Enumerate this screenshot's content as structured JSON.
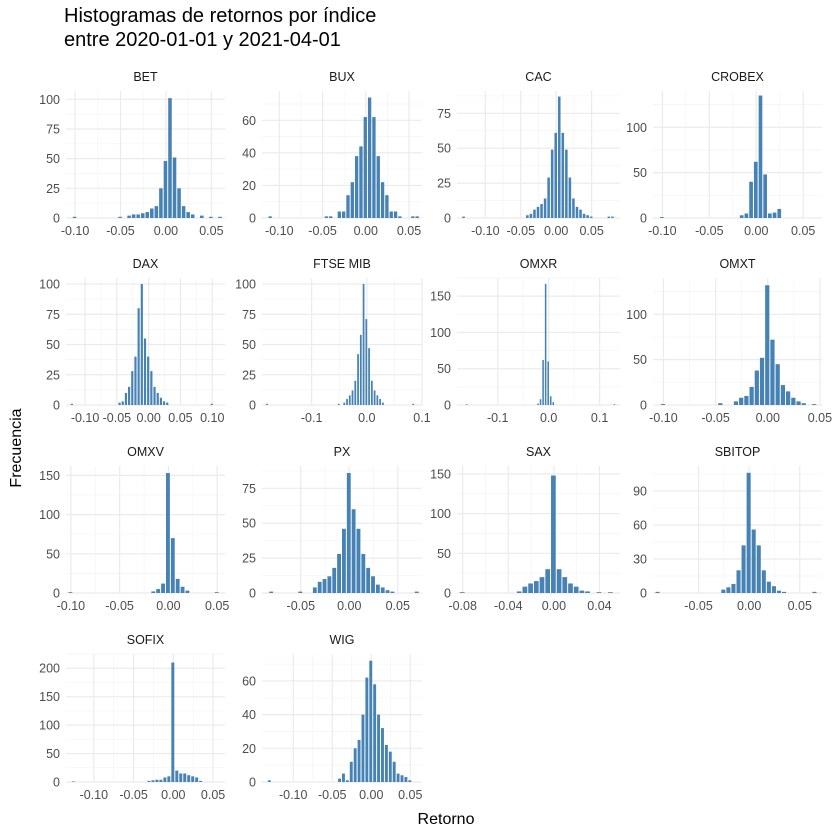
{
  "title_line1": "Histogramas de retornos por índice",
  "title_line2": "entre 2020-01-01 y 2021-04-01",
  "xlabel": "Retorno",
  "ylabel": "Frecuencia",
  "colors": {
    "bar": "#4682b4",
    "grid_major": "#ebebeb",
    "grid_minor": "#f4f4f4"
  },
  "chart_data": [
    {
      "type": "bar",
      "title": "BET",
      "xlim": [
        -0.11,
        0.065
      ],
      "ylim": [
        0,
        107
      ],
      "xticks": [
        -0.1,
        -0.05,
        0.0,
        0.05
      ],
      "xtick_labels": [
        "-0.10",
        "-0.05",
        "0.00",
        "0.05"
      ],
      "yticks": [
        0,
        25,
        50,
        75,
        100
      ],
      "ytick_labels": [
        "0",
        "25",
        "50",
        "75",
        "100"
      ],
      "bins": [
        [
          -0.1,
          1
        ],
        [
          -0.05,
          1
        ],
        [
          -0.04,
          2
        ],
        [
          -0.035,
          3
        ],
        [
          -0.03,
          3
        ],
        [
          -0.025,
          4
        ],
        [
          -0.02,
          5
        ],
        [
          -0.015,
          8
        ],
        [
          -0.01,
          10
        ],
        [
          -0.005,
          25
        ],
        [
          0.0,
          48
        ],
        [
          0.005,
          101
        ],
        [
          0.01,
          51
        ],
        [
          0.015,
          25
        ],
        [
          0.02,
          10
        ],
        [
          0.025,
          5
        ],
        [
          0.03,
          3
        ],
        [
          0.04,
          2
        ],
        [
          0.05,
          1
        ],
        [
          0.06,
          1
        ]
      ]
    },
    {
      "type": "bar",
      "title": "BUX",
      "xlim": [
        -0.12,
        0.065
      ],
      "ylim": [
        0,
        78
      ],
      "xticks": [
        -0.1,
        -0.05,
        0.0,
        0.05
      ],
      "xtick_labels": [
        "-0.10",
        "-0.05",
        "0.00",
        "0.05"
      ],
      "yticks": [
        0,
        20,
        40,
        60
      ],
      "ytick_labels": [
        "0",
        "20",
        "40",
        "60"
      ],
      "bins": [
        [
          -0.11,
          1
        ],
        [
          -0.045,
          1
        ],
        [
          -0.04,
          1
        ],
        [
          -0.03,
          4
        ],
        [
          -0.025,
          4
        ],
        [
          -0.02,
          14
        ],
        [
          -0.015,
          22
        ],
        [
          -0.01,
          38
        ],
        [
          -0.005,
          44
        ],
        [
          0.0,
          62
        ],
        [
          0.005,
          74
        ],
        [
          0.01,
          62
        ],
        [
          0.015,
          38
        ],
        [
          0.02,
          22
        ],
        [
          0.025,
          14
        ],
        [
          0.03,
          4
        ],
        [
          0.035,
          4
        ],
        [
          0.04,
          1
        ],
        [
          0.055,
          1
        ],
        [
          0.06,
          1
        ]
      ]
    },
    {
      "type": "bar",
      "title": "CAC",
      "xlim": [
        -0.14,
        0.09
      ],
      "ylim": [
        0,
        91
      ],
      "xticks": [
        -0.1,
        -0.05,
        0.0,
        0.05
      ],
      "xtick_labels": [
        "-0.10",
        "-0.05",
        "0.00",
        "0.05"
      ],
      "yticks": [
        0,
        25,
        50,
        75
      ],
      "ytick_labels": [
        "0",
        "25",
        "50",
        "75"
      ],
      "bins": [
        [
          -0.13,
          1
        ],
        [
          -0.04,
          2
        ],
        [
          -0.035,
          3
        ],
        [
          -0.03,
          6
        ],
        [
          -0.025,
          8
        ],
        [
          -0.02,
          10
        ],
        [
          -0.015,
          14
        ],
        [
          -0.01,
          29
        ],
        [
          -0.005,
          49
        ],
        [
          0.0,
          61
        ],
        [
          0.005,
          87
        ],
        [
          0.01,
          61
        ],
        [
          0.015,
          49
        ],
        [
          0.02,
          29
        ],
        [
          0.025,
          14
        ],
        [
          0.03,
          8
        ],
        [
          0.035,
          6
        ],
        [
          0.04,
          3
        ],
        [
          0.045,
          2
        ],
        [
          0.05,
          1
        ],
        [
          0.075,
          1
        ],
        [
          0.08,
          1
        ]
      ]
    },
    {
      "type": "bar",
      "title": "CROBEX",
      "xlim": [
        -0.11,
        0.07
      ],
      "ylim": [
        0,
        140
      ],
      "xticks": [
        -0.1,
        -0.05,
        0.0,
        0.05
      ],
      "xtick_labels": [
        "-0.10",
        "-0.05",
        "0.00",
        "0.05"
      ],
      "yticks": [
        0,
        50,
        100
      ],
      "ytick_labels": [
        "0",
        "50",
        "100"
      ],
      "bins": [
        [
          -0.1,
          1
        ],
        [
          -0.015,
          3
        ],
        [
          -0.01,
          5
        ],
        [
          -0.005,
          40
        ],
        [
          0.0,
          62
        ],
        [
          0.005,
          135
        ],
        [
          0.01,
          48
        ],
        [
          0.015,
          5
        ],
        [
          0.02,
          6
        ],
        [
          0.025,
          10
        ]
      ]
    },
    {
      "type": "bar",
      "title": "DAX",
      "xlim": [
        -0.13,
        0.12
      ],
      "ylim": [
        0,
        105
      ],
      "xticks": [
        -0.1,
        -0.05,
        0.0,
        0.05,
        0.1
      ],
      "xtick_labels": [
        "-0.10",
        "-0.05",
        "0.00",
        "0.05",
        "0.10"
      ],
      "yticks": [
        0,
        25,
        50,
        75,
        100
      ],
      "ytick_labels": [
        "0",
        "25",
        "50",
        "75",
        "100"
      ],
      "bins": [
        [
          -0.12,
          1
        ],
        [
          -0.045,
          2
        ],
        [
          -0.04,
          3
        ],
        [
          -0.035,
          10
        ],
        [
          -0.03,
          15
        ],
        [
          -0.025,
          28
        ],
        [
          -0.02,
          40
        ],
        [
          -0.015,
          80
        ],
        [
          -0.01,
          100
        ],
        [
          -0.005,
          55
        ],
        [
          0.0,
          40
        ],
        [
          0.005,
          28
        ],
        [
          0.01,
          15
        ],
        [
          0.015,
          10
        ],
        [
          0.02,
          6
        ],
        [
          0.025,
          3
        ],
        [
          0.03,
          2
        ],
        [
          0.1,
          1
        ]
      ]
    },
    {
      "type": "bar",
      "title": "FTSE MIB",
      "xlim": [
        -0.19,
        0.1
      ],
      "ylim": [
        0,
        105
      ],
      "xticks": [
        -0.1,
        0.0,
        0.1
      ],
      "xtick_labels": [
        "-0.1",
        "0.0",
        "0.1"
      ],
      "yticks": [
        0,
        25,
        50,
        75,
        100
      ],
      "ytick_labels": [
        "0",
        "25",
        "50",
        "75",
        "100"
      ],
      "bins": [
        [
          -0.18,
          1
        ],
        [
          -0.05,
          1
        ],
        [
          -0.04,
          2
        ],
        [
          -0.035,
          5
        ],
        [
          -0.03,
          8
        ],
        [
          -0.025,
          12
        ],
        [
          -0.02,
          20
        ],
        [
          -0.015,
          42
        ],
        [
          -0.01,
          58
        ],
        [
          -0.005,
          100
        ],
        [
          0.0,
          71
        ],
        [
          0.005,
          47
        ],
        [
          0.01,
          20
        ],
        [
          0.015,
          12
        ],
        [
          0.02,
          8
        ],
        [
          0.025,
          5
        ],
        [
          0.03,
          2
        ],
        [
          0.085,
          1
        ]
      ]
    },
    {
      "type": "bar",
      "title": "OMXR",
      "xlim": [
        -0.18,
        0.14
      ],
      "ylim": [
        0,
        175
      ],
      "xticks": [
        -0.1,
        0.0,
        0.1
      ],
      "xtick_labels": [
        "-0.1",
        "0.0",
        "0.1"
      ],
      "yticks": [
        0,
        50,
        100,
        150
      ],
      "ytick_labels": [
        "0",
        "50",
        "100",
        "150"
      ],
      "bins": [
        [
          -0.16,
          1
        ],
        [
          -0.02,
          2
        ],
        [
          -0.015,
          8
        ],
        [
          -0.01,
          62
        ],
        [
          -0.005,
          167
        ],
        [
          0.0,
          60
        ],
        [
          0.005,
          12
        ],
        [
          0.01,
          4
        ],
        [
          0.13,
          1
        ]
      ]
    },
    {
      "type": "bar",
      "title": "OMXT",
      "xlim": [
        -0.11,
        0.052
      ],
      "ylim": [
        0,
        140
      ],
      "xticks": [
        -0.1,
        -0.05,
        0.0,
        0.05
      ],
      "xtick_labels": [
        "-0.10",
        "-0.05",
        "0.00",
        "0.05"
      ],
      "yticks": [
        0,
        50,
        100
      ],
      "ytick_labels": [
        "0",
        "50",
        "100"
      ],
      "bins": [
        [
          -0.1,
          1
        ],
        [
          -0.045,
          2
        ],
        [
          -0.03,
          4
        ],
        [
          -0.025,
          8
        ],
        [
          -0.02,
          10
        ],
        [
          -0.015,
          20
        ],
        [
          -0.01,
          38
        ],
        [
          -0.005,
          52
        ],
        [
          0.0,
          132
        ],
        [
          0.005,
          72
        ],
        [
          0.01,
          45
        ],
        [
          0.015,
          22
        ],
        [
          0.02,
          15
        ],
        [
          0.025,
          8
        ],
        [
          0.03,
          4
        ],
        [
          0.035,
          2
        ],
        [
          0.045,
          1
        ]
      ]
    },
    {
      "type": "bar",
      "title": "OMXV",
      "xlim": [
        -0.105,
        0.058
      ],
      "ylim": [
        0,
        162
      ],
      "xticks": [
        -0.1,
        -0.05,
        0.0,
        0.05
      ],
      "xtick_labels": [
        "-0.10",
        "-0.05",
        "0.00",
        "0.05"
      ],
      "yticks": [
        0,
        50,
        100,
        150
      ],
      "ytick_labels": [
        "0",
        "50",
        "100",
        "150"
      ],
      "bins": [
        [
          -0.1,
          1
        ],
        [
          -0.015,
          2
        ],
        [
          -0.01,
          5
        ],
        [
          -0.005,
          12
        ],
        [
          0.0,
          153
        ],
        [
          0.005,
          70
        ],
        [
          0.01,
          18
        ],
        [
          0.015,
          8
        ],
        [
          0.02,
          3
        ],
        [
          0.05,
          1
        ]
      ]
    },
    {
      "type": "bar",
      "title": "PX",
      "xlim": [
        -0.09,
        0.075
      ],
      "ylim": [
        0,
        91
      ],
      "xticks": [
        -0.05,
        0.0,
        0.05
      ],
      "xtick_labels": [
        "-0.05",
        "0.00",
        "0.05"
      ],
      "yticks": [
        0,
        25,
        50,
        75
      ],
      "ytick_labels": [
        "0",
        "25",
        "50",
        "75"
      ],
      "bins": [
        [
          -0.08,
          1
        ],
        [
          -0.05,
          1
        ],
        [
          -0.035,
          4
        ],
        [
          -0.03,
          8
        ],
        [
          -0.025,
          10
        ],
        [
          -0.02,
          12
        ],
        [
          -0.015,
          18
        ],
        [
          -0.01,
          28
        ],
        [
          -0.005,
          46
        ],
        [
          0.0,
          86
        ],
        [
          0.005,
          60
        ],
        [
          0.01,
          46
        ],
        [
          0.015,
          28
        ],
        [
          0.02,
          18
        ],
        [
          0.025,
          12
        ],
        [
          0.03,
          6
        ],
        [
          0.035,
          4
        ],
        [
          0.04,
          2
        ],
        [
          0.045,
          1
        ],
        [
          0.07,
          1
        ]
      ]
    },
    {
      "type": "bar",
      "title": "SAX",
      "xlim": [
        -0.085,
        0.058
      ],
      "ylim": [
        0,
        160
      ],
      "xticks": [
        -0.08,
        -0.04,
        0.0,
        0.04
      ],
      "xtick_labels": [
        "-0.08",
        "-0.04",
        "0.00",
        "0.04"
      ],
      "yticks": [
        0,
        50,
        100,
        150
      ],
      "ytick_labels": [
        "0",
        "50",
        "100",
        "150"
      ],
      "bins": [
        [
          -0.08,
          1
        ],
        [
          -0.03,
          2
        ],
        [
          -0.025,
          8
        ],
        [
          -0.02,
          12
        ],
        [
          -0.015,
          15
        ],
        [
          -0.01,
          20
        ],
        [
          -0.005,
          30
        ],
        [
          0.0,
          148
        ],
        [
          0.005,
          30
        ],
        [
          0.01,
          20
        ],
        [
          0.015,
          12
        ],
        [
          0.02,
          8
        ],
        [
          0.025,
          3
        ],
        [
          0.03,
          2
        ],
        [
          0.04,
          1
        ],
        [
          0.05,
          1
        ]
      ]
    },
    {
      "type": "bar",
      "title": "SBITOP",
      "xlim": [
        -0.095,
        0.072
      ],
      "ylim": [
        0,
        112
      ],
      "xticks": [
        -0.05,
        0.0,
        0.05
      ],
      "xtick_labels": [
        "-0.05",
        "0.00",
        "0.05"
      ],
      "yticks": [
        0,
        30,
        60,
        90
      ],
      "ytick_labels": [
        "0",
        "30",
        "60",
        "90"
      ],
      "bins": [
        [
          -0.09,
          1
        ],
        [
          -0.025,
          3
        ],
        [
          -0.02,
          5
        ],
        [
          -0.015,
          8
        ],
        [
          -0.01,
          20
        ],
        [
          -0.005,
          42
        ],
        [
          0.0,
          106
        ],
        [
          0.005,
          56
        ],
        [
          0.01,
          42
        ],
        [
          0.015,
          20
        ],
        [
          0.02,
          10
        ],
        [
          0.025,
          6
        ],
        [
          0.03,
          2
        ],
        [
          0.035,
          1
        ],
        [
          0.065,
          1
        ]
      ]
    },
    {
      "type": "bar",
      "title": "SOFIX",
      "xlim": [
        -0.135,
        0.065
      ],
      "ylim": [
        0,
        225
      ],
      "xticks": [
        -0.1,
        -0.05,
        0.0,
        0.05
      ],
      "xtick_labels": [
        "-0.10",
        "-0.05",
        "0.00",
        "0.05"
      ],
      "yticks": [
        0,
        50,
        100,
        150,
        200
      ],
      "ytick_labels": [
        "0",
        "50",
        "100",
        "150",
        "200"
      ],
      "bins": [
        [
          -0.125,
          1
        ],
        [
          -0.03,
          2
        ],
        [
          -0.025,
          3
        ],
        [
          -0.02,
          4
        ],
        [
          -0.015,
          4
        ],
        [
          -0.01,
          8
        ],
        [
          -0.005,
          10
        ],
        [
          0.0,
          210
        ],
        [
          0.005,
          20
        ],
        [
          0.01,
          15
        ],
        [
          0.015,
          15
        ],
        [
          0.02,
          12
        ],
        [
          0.025,
          10
        ],
        [
          0.03,
          8
        ],
        [
          0.035,
          2
        ]
      ]
    },
    {
      "type": "bar",
      "title": "WIG",
      "xlim": [
        -0.14,
        0.065
      ],
      "ylim": [
        0,
        76
      ],
      "xticks": [
        -0.1,
        -0.05,
        0.0,
        0.05
      ],
      "xtick_labels": [
        "-0.10",
        "-0.05",
        "0.00",
        "0.05"
      ],
      "yticks": [
        0,
        20,
        40,
        60
      ],
      "ytick_labels": [
        "0",
        "20",
        "40",
        "60"
      ],
      "bins": [
        [
          -0.13,
          1
        ],
        [
          -0.04,
          2
        ],
        [
          -0.035,
          5
        ],
        [
          -0.03,
          1
        ],
        [
          -0.025,
          12
        ],
        [
          -0.02,
          20
        ],
        [
          -0.015,
          25
        ],
        [
          -0.01,
          40
        ],
        [
          -0.005,
          62
        ],
        [
          0.0,
          72
        ],
        [
          0.005,
          58
        ],
        [
          0.01,
          40
        ],
        [
          0.015,
          32
        ],
        [
          0.02,
          22
        ],
        [
          0.025,
          18
        ],
        [
          0.03,
          12
        ],
        [
          0.035,
          5
        ],
        [
          0.04,
          4
        ],
        [
          0.045,
          3
        ],
        [
          0.05,
          1
        ]
      ]
    }
  ]
}
